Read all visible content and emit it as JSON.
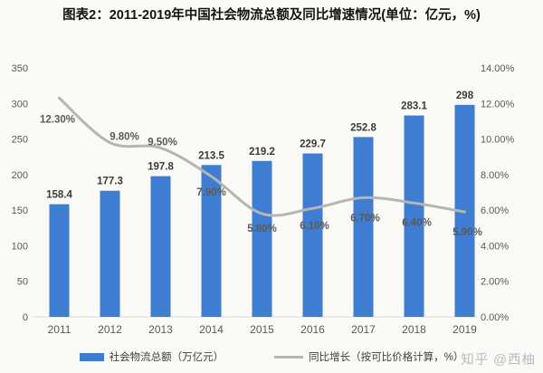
{
  "page": {
    "watermark": "知乎 @西柚"
  },
  "chart_data": {
    "type": "bar+line",
    "title": "图表2：2011-2019年中国社会物流总额及同比增速情况(单位：亿元，%)",
    "categories": [
      "2011",
      "2012",
      "2013",
      "2014",
      "2015",
      "2016",
      "2017",
      "2018",
      "2019"
    ],
    "series": [
      {
        "name": "社会物流总额（万亿元）",
        "type": "bar",
        "axis": "left",
        "color": "#3e7dd2",
        "values": [
          158.4,
          177.3,
          197.8,
          213.5,
          219.2,
          229.7,
          252.8,
          283.1,
          298
        ],
        "labels": [
          "158.4",
          "177.3",
          "197.8",
          "213.5",
          "219.2",
          "229.7",
          "252.8",
          "283.1",
          "298"
        ]
      },
      {
        "name": "同比增长（按可比价格计算，%）",
        "type": "line",
        "axis": "right",
        "color": "#b5b5b5",
        "values": [
          12.3,
          9.8,
          9.5,
          7.9,
          5.8,
          6.1,
          6.7,
          6.4,
          5.9
        ],
        "labels": [
          "12.30%",
          "9.80%",
          "9.50%",
          "7.90%",
          "5.80%",
          "6.10%",
          "6.70%",
          "6.40%",
          "5.90%"
        ],
        "label_offsets": [
          [
            -2,
            27
          ],
          [
            16,
            -3
          ],
          [
            2,
            -3
          ],
          [
            0,
            21
          ],
          [
            0,
            20
          ],
          [
            2,
            23
          ],
          [
            2,
            26
          ],
          [
            3,
            25
          ],
          [
            3,
            26
          ]
        ]
      }
    ],
    "left_axis": {
      "min": 0,
      "max": 350,
      "step": 50
    },
    "right_axis": {
      "min": 0,
      "max": 14,
      "step": 2,
      "suffix": "%"
    },
    "grid": "off",
    "legend_position": "bottom"
  }
}
